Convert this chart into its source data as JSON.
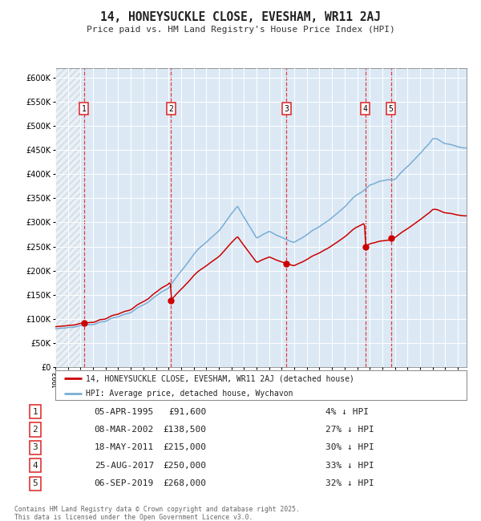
{
  "title": "14, HONEYSUCKLE CLOSE, EVESHAM, WR11 2AJ",
  "subtitle": "Price paid vs. HM Land Registry's House Price Index (HPI)",
  "legend_red": "14, HONEYSUCKLE CLOSE, EVESHAM, WR11 2AJ (detached house)",
  "legend_blue": "HPI: Average price, detached house, Wychavon",
  "footer": "Contains HM Land Registry data © Crown copyright and database right 2025.\nThis data is licensed under the Open Government Licence v3.0.",
  "transactions": [
    {
      "num": 1,
      "date": "05-APR-1995",
      "price": 91600,
      "pct": "4%",
      "year_x": 1995.27
    },
    {
      "num": 2,
      "date": "08-MAR-2002",
      "price": 138500,
      "pct": "27%",
      "year_x": 2002.19
    },
    {
      "num": 3,
      "date": "18-MAY-2011",
      "price": 215000,
      "pct": "30%",
      "year_x": 2011.38
    },
    {
      "num": 4,
      "date": "25-AUG-2017",
      "price": 250000,
      "pct": "33%",
      "year_x": 2017.65
    },
    {
      "num": 5,
      "date": "06-SEP-2019",
      "price": 268000,
      "pct": "32%",
      "year_x": 2019.68
    }
  ],
  "ylim": [
    0,
    620000
  ],
  "xlim_start": 1993.0,
  "xlim_end": 2025.7,
  "bg_color": "#dce9f5",
  "plot_bg": "#dce9f5",
  "red_color": "#cc0000",
  "blue_color": "#7aadd4",
  "grid_color": "#ffffff",
  "dashed_color": "#dd2222",
  "hpi_keypoints": [
    [
      1993.0,
      80000
    ],
    [
      1995.0,
      88000
    ],
    [
      1998.0,
      110000
    ],
    [
      2000.0,
      135000
    ],
    [
      2002.0,
      165000
    ],
    [
      2004.0,
      230000
    ],
    [
      2007.5,
      340000
    ],
    [
      2009.0,
      275000
    ],
    [
      2010.0,
      290000
    ],
    [
      2012.0,
      270000
    ],
    [
      2014.0,
      300000
    ],
    [
      2016.0,
      340000
    ],
    [
      2018.0,
      390000
    ],
    [
      2020.0,
      400000
    ],
    [
      2021.5,
      440000
    ],
    [
      2023.0,
      490000
    ],
    [
      2024.0,
      480000
    ],
    [
      2025.5,
      475000
    ]
  ]
}
